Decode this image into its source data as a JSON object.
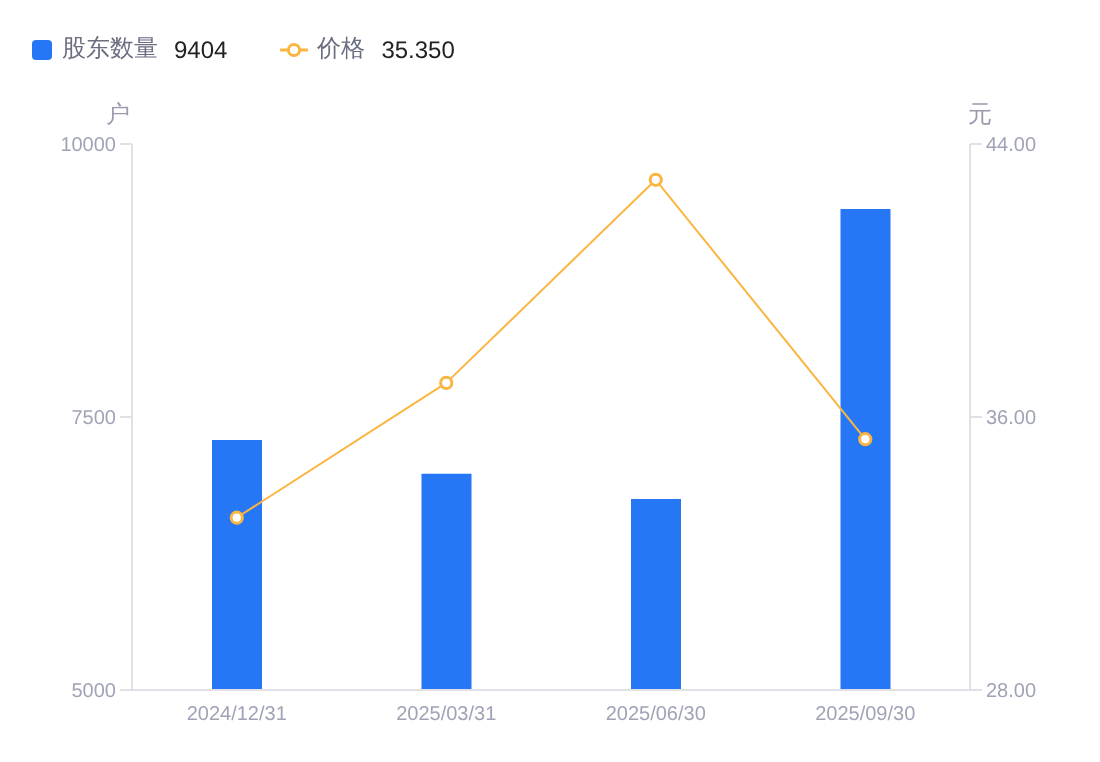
{
  "chart_data": {
    "type": "bar",
    "ylabel": "户",
    "y2label": "元",
    "categories": [
      "2024/12/31",
      "2025/03/31",
      "2025/06/30",
      "2025/09/30"
    ],
    "series": [
      {
        "name": "股东数量",
        "color": "#2577f5",
        "values": [
          7290,
          6980,
          6750,
          9404
        ]
      },
      {
        "name": "价格",
        "type": "line",
        "axis": "y2",
        "color": "#fbb541",
        "values": [
          33.05,
          37.0,
          42.95,
          35.35
        ]
      }
    ],
    "annotations": [
      "9404",
      "35.350"
    ],
    "ylim": [
      5000,
      10000
    ],
    "yticks": [
      5000,
      7500,
      10000
    ],
    "y2lim": [
      28,
      44
    ],
    "y2ticks": [
      {
        "value": 28,
        "label": "28.00"
      },
      {
        "value": 36,
        "label": "36.00"
      },
      {
        "value": 44,
        "label": "44.00"
      }
    ],
    "grid": false,
    "legend": "top left",
    "marker": "circle",
    "line_style": "solid"
  }
}
